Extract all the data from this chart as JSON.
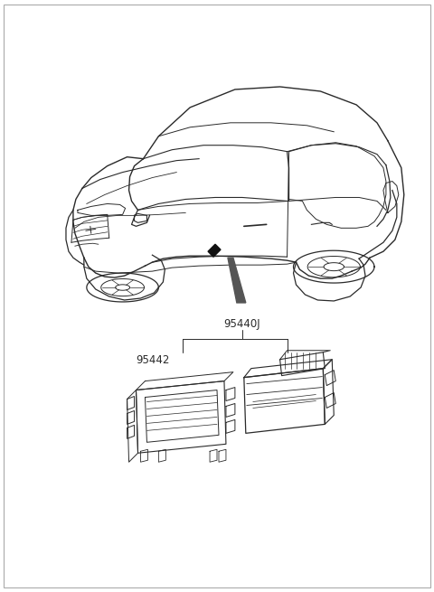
{
  "background_color": "#ffffff",
  "line_color": "#2a2a2a",
  "label_95440J": "95440J",
  "label_95442": "95442",
  "label_fontsize": 8.5,
  "fig_width": 4.8,
  "fig_height": 6.55,
  "dpi": 100,
  "border_color": "#cccccc",
  "has_border": true
}
